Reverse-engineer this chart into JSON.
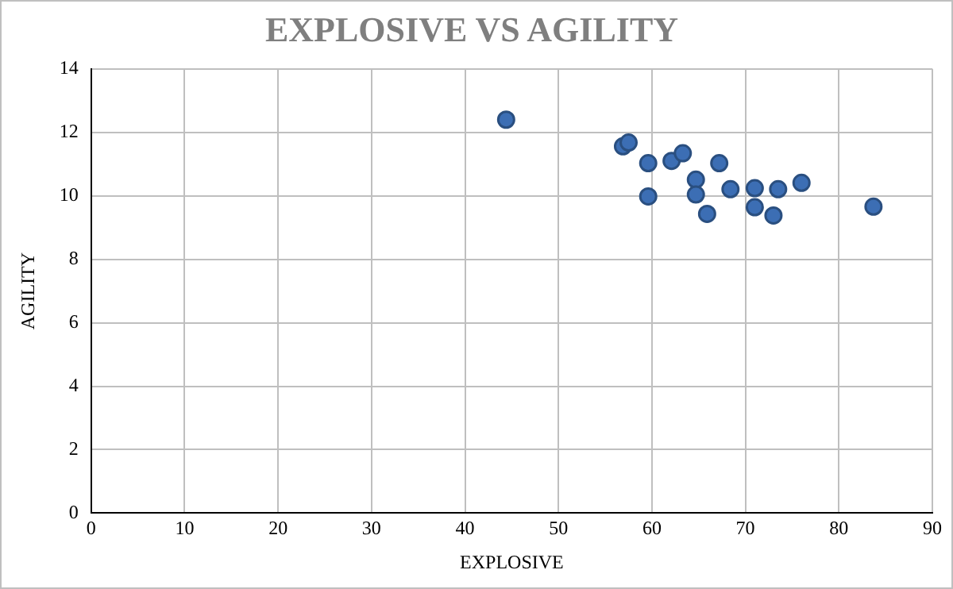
{
  "chart_data": {
    "type": "scatter",
    "title": "EXPLOSIVE VS AGILITY",
    "xlabel": "EXPLOSIVE",
    "ylabel": "AGILITY",
    "x": [
      44.4,
      56.9,
      57.5,
      59.6,
      59.6,
      62.1,
      63.3,
      64.7,
      64.7,
      65.9,
      67.2,
      68.4,
      71.0,
      71.0,
      73.5,
      73.0,
      76.0,
      83.7
    ],
    "series": [
      {
        "color": "#3c6eb4",
        "values": [
          12.4,
          11.56,
          11.68,
          11.03,
          9.98,
          11.1,
          11.34,
          10.51,
          10.04,
          9.43,
          11.03,
          10.21,
          10.24,
          9.64,
          10.21,
          9.38,
          10.41,
          9.66
        ]
      }
    ],
    "xlim": [
      0,
      90
    ],
    "xticks": [
      0,
      10,
      20,
      30,
      40,
      50,
      60,
      70,
      80,
      90
    ],
    "ylim": [
      0,
      14
    ],
    "yticks": [
      0,
      2,
      4,
      6,
      8,
      10,
      12,
      14
    ],
    "grid": true,
    "legend": false,
    "marker": "circle"
  }
}
